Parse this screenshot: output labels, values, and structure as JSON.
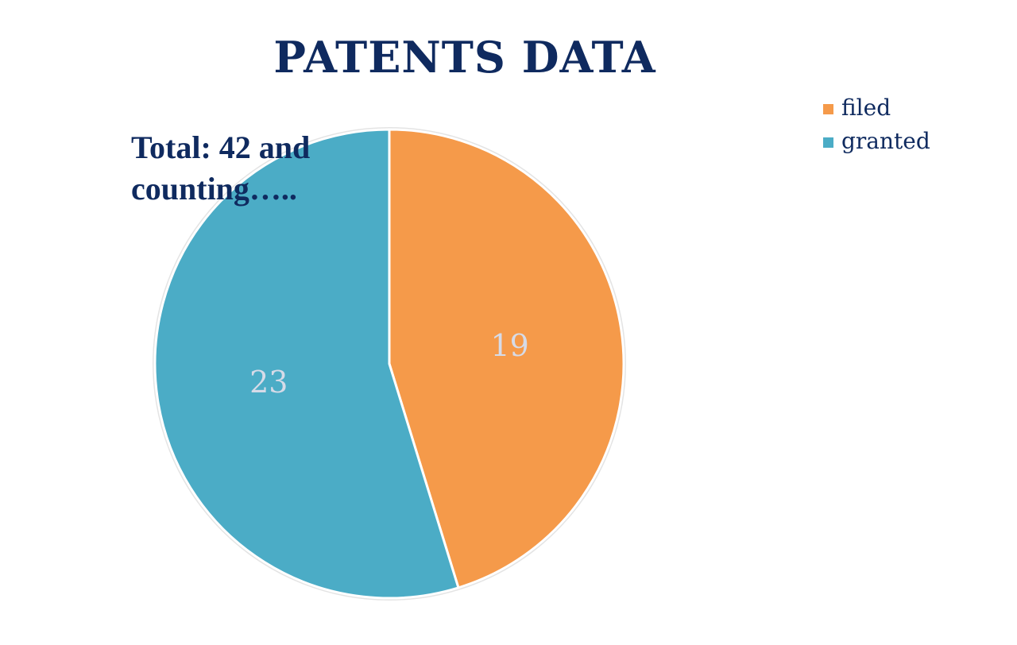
{
  "chart_data": {
    "type": "pie",
    "title": "PATENTS DATA",
    "annotation": "Total: 42 and counting…..",
    "categories": [
      "filed",
      "granted"
    ],
    "values": [
      19,
      23
    ],
    "colors": [
      "#f59a4a",
      "#4bacc6"
    ],
    "legend_position": "top-right"
  }
}
